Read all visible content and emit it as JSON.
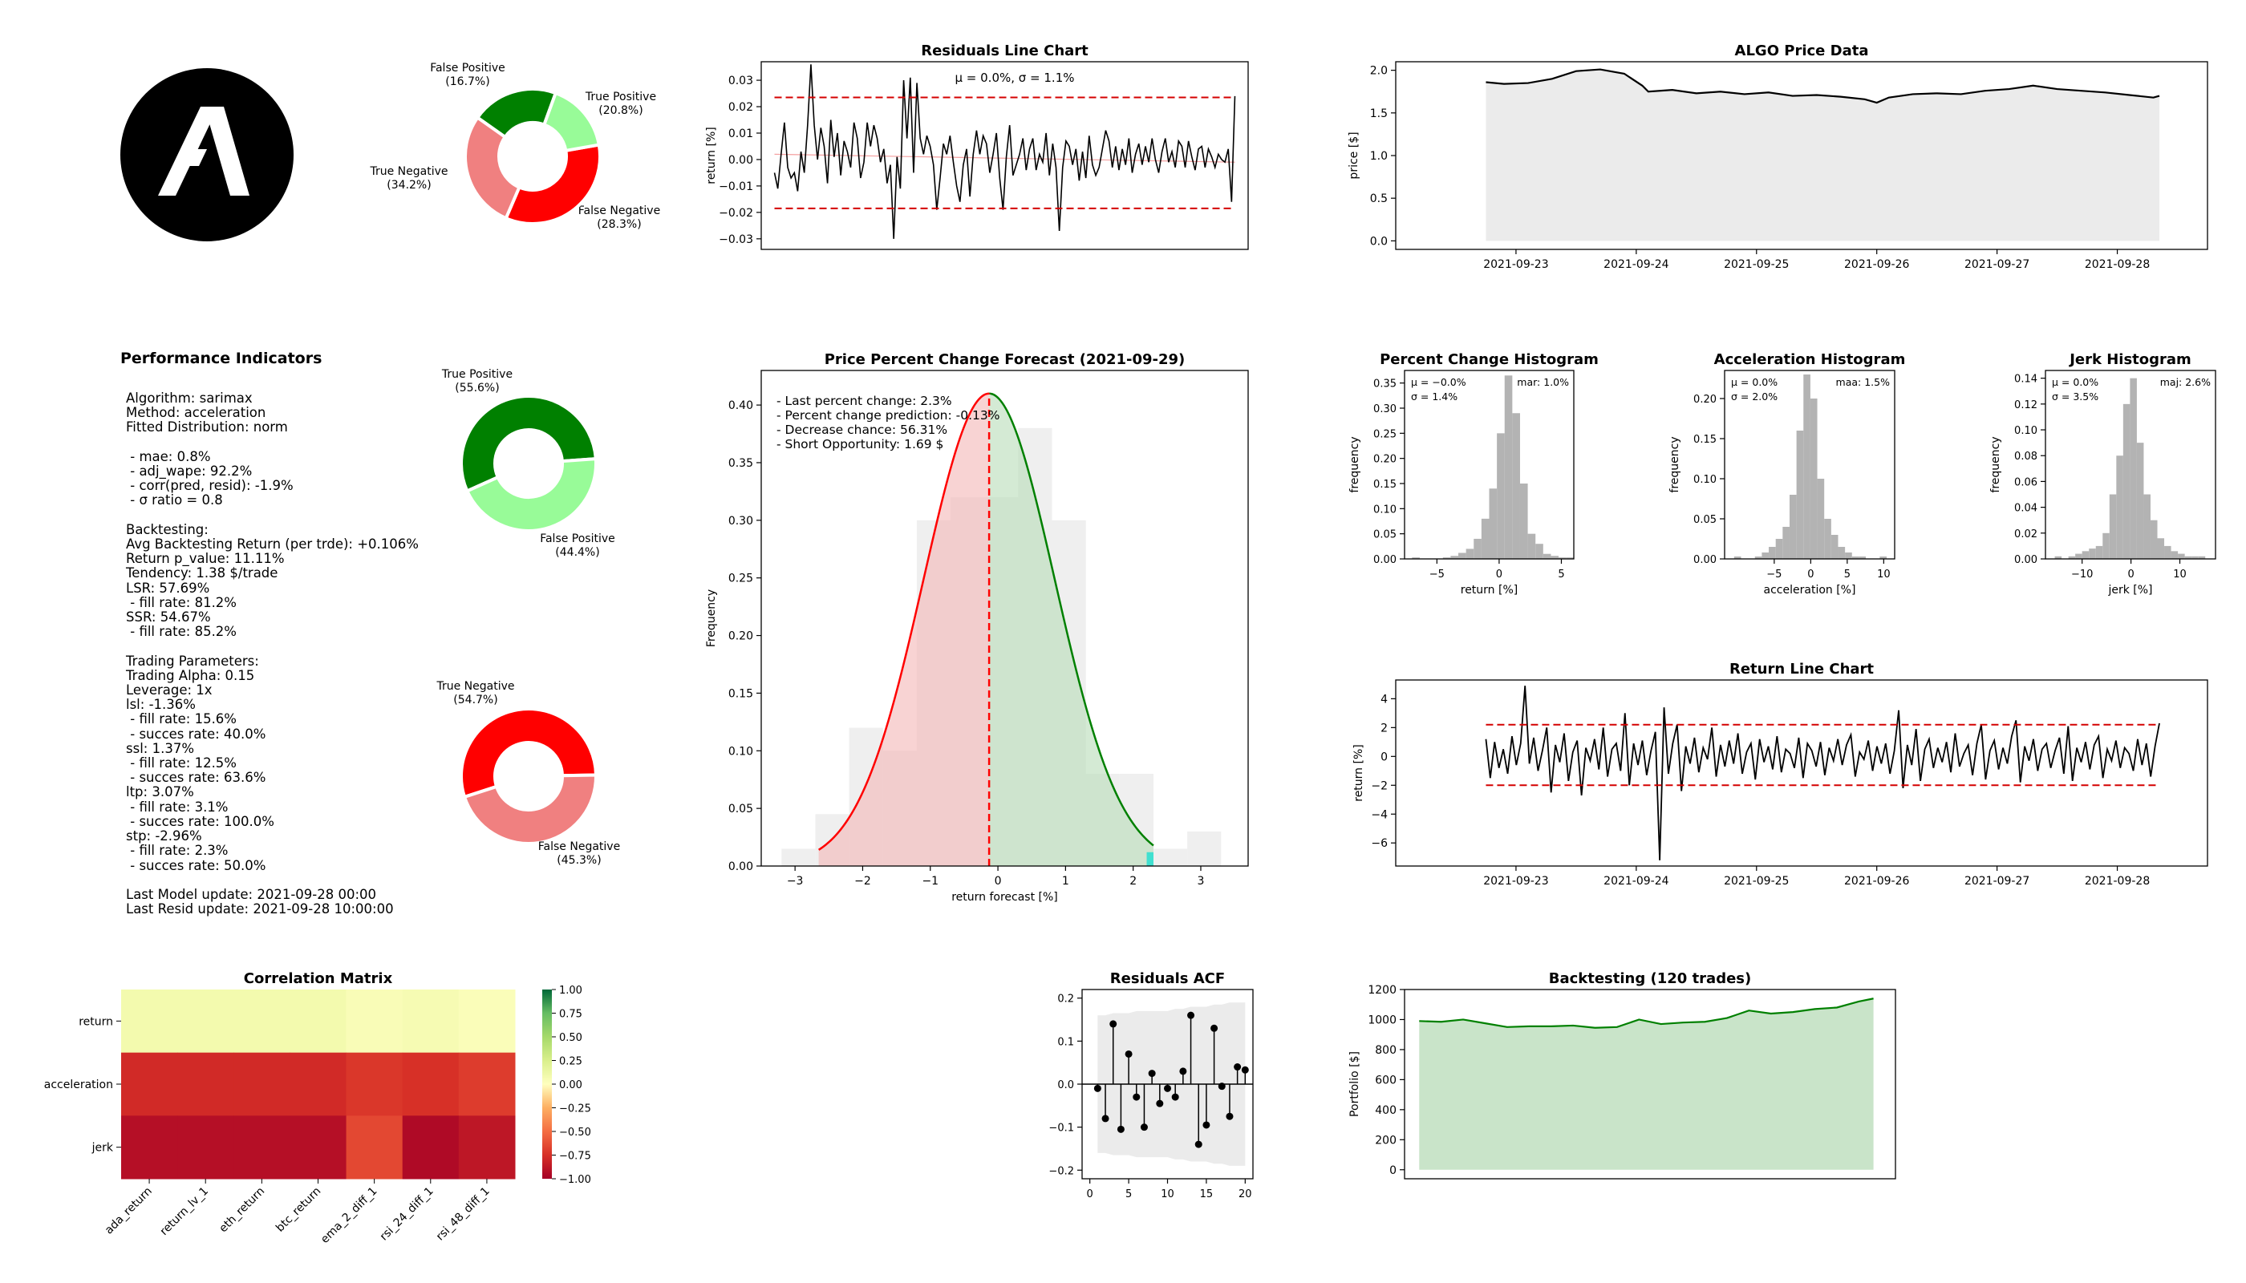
{
  "pie_top": {
    "slices": [
      {
        "label": "True Positive",
        "pct": "(20.8%)",
        "value": 20.8,
        "color": "#008000"
      },
      {
        "label": "False Negative",
        "pct": "(28.3%)",
        "value": 28.3,
        "color": "#f08080"
      },
      {
        "label": "True Negative",
        "pct": "(34.2%)",
        "value": 34.2,
        "color": "#ff0000"
      },
      {
        "label": "False Positive",
        "pct": "(16.7%)",
        "value": 16.7,
        "color": "#98fb98"
      }
    ]
  },
  "pie_mid": {
    "slices": [
      {
        "label": "True Positive",
        "pct": "(55.6%)",
        "value": 55.6,
        "color": "#008000"
      },
      {
        "label": "False Positive",
        "pct": "(44.4%)",
        "value": 44.4,
        "color": "#98fb98"
      }
    ]
  },
  "pie_bot": {
    "slices": [
      {
        "label": "True Negative",
        "pct": "(54.7%)",
        "value": 54.7,
        "color": "#ff0000"
      },
      {
        "label": "False Negative",
        "pct": "(45.3%)",
        "value": 45.3,
        "color": "#f08080"
      }
    ]
  },
  "perf": {
    "title": "Performance Indicators",
    "lines": [
      "Algorithm: sarimax",
      "Method: acceleration",
      "Fitted Distribution: norm",
      "",
      " - mae: 0.8%",
      " - adj_wape: 92.2%",
      " - corr(pred, resid): -1.9%",
      " - σ ratio = 0.8",
      "",
      "Backtesting:",
      "Avg Backtesting Return (per trde): +0.106%",
      "Return p_value: 11.11%",
      "Tendency: 1.38 $/trade",
      "LSR: 57.69%",
      " - fill rate: 81.2%",
      "SSR: 54.67%",
      " - fill rate: 85.2%",
      "",
      "Trading Parameters:",
      "Trading Alpha: 0.15",
      "Leverage: 1x",
      "lsl: -1.36%",
      " - fill rate: 15.6%",
      " - succes rate: 40.0%",
      "ssl: 1.37%",
      " - fill rate: 12.5%",
      " - succes rate: 63.6%",
      "ltp: 3.07%",
      " - fill rate: 3.1%",
      " - succes rate: 100.0%",
      "stp: -2.96%",
      " - fill rate: 2.3%",
      " - succes rate: 50.0%",
      "",
      "Last Model update: 2021-09-28 00:00",
      "Last Resid update: 2021-09-28 10:00:00"
    ]
  },
  "chart_data": [
    {
      "id": "residuals_line",
      "type": "line",
      "title": "Residuals Line Chart",
      "ylabel": "return [%]",
      "annotation": "μ = 0.0%,  σ = 1.1%",
      "ylim": [
        -0.034,
        0.037
      ],
      "yticks": [
        "0.03",
        "0.02",
        "0.01",
        "0.00",
        "−0.01",
        "−0.02",
        "−0.03"
      ],
      "ytick_values": [
        0.03,
        0.02,
        0.01,
        0.0,
        -0.01,
        -0.02,
        -0.03
      ],
      "upper_band": 0.0235,
      "lower_band": -0.0185,
      "values": [
        -0.005,
        -0.011,
        0.002,
        0.014,
        -0.003,
        -0.007,
        -0.005,
        -0.012,
        0.003,
        -0.005,
        0.013,
        0.036,
        0.013,
        0.0,
        0.012,
        0.005,
        -0.009,
        0.015,
        0.001,
        0.01,
        -0.006,
        0.007,
        0.003,
        -0.003,
        0.014,
        0.008,
        -0.007,
        -0.001,
        0.014,
        0.005,
        0.013,
        0.008,
        -0.001,
        0.004,
        -0.009,
        -0.002,
        -0.03,
        0.001,
        -0.011,
        0.03,
        0.008,
        0.031,
        -0.005,
        0.029,
        0.008,
        0.002,
        0.009,
        0.005,
        -0.002,
        -0.019,
        -0.007,
        0.006,
        0.002,
        0.009,
        -0.001,
        -0.01,
        -0.016,
        -0.002,
        0.004,
        -0.014,
        0.002,
        0.011,
        0.002,
        0.009,
        0.006,
        -0.005,
        0.002,
        0.01,
        -0.007,
        -0.019,
        0.001,
        0.013,
        -0.006,
        -0.002,
        0.002,
        0.008,
        -0.004,
        0.004,
        0.008,
        -0.004,
        0.002,
        -0.001,
        0.01,
        -0.006,
        0.006,
        -0.003,
        -0.027,
        -0.003,
        0.007,
        0.005,
        -0.002,
        0.004,
        -0.008,
        0.003,
        -0.007,
        0.009,
        -0.002,
        -0.006,
        -0.003,
        0.004,
        0.011,
        0.007,
        -0.003,
        0.005,
        -0.004,
        0.004,
        -0.002,
        0.008,
        -0.005,
        0.002,
        0.006,
        -0.002,
        0.005,
        -0.001,
        0.008,
        0.0,
        -0.005,
        0.003,
        0.008,
        -0.001,
        0.003,
        -0.003,
        0.007,
        0.005,
        -0.003,
        0.007,
        0.001,
        -0.004,
        0.004,
        0.005,
        -0.003,
        0.004,
        0.001,
        -0.003,
        0.002,
        0.0,
        -0.001,
        0.004,
        -0.016,
        0.024
      ]
    },
    {
      "id": "price",
      "type": "area",
      "title": "ALGO Price Data",
      "ylabel": "price [$]",
      "xlim": [
        0,
        6.75
      ],
      "ylim": [
        -0.1,
        2.1
      ],
      "yticks": [
        "0.0",
        "0.5",
        "1.0",
        "1.5",
        "2.0"
      ],
      "ytick_values": [
        0.0,
        0.5,
        1.0,
        1.5,
        2.0
      ],
      "xticks": [
        "2021-09-23",
        "2021-09-24",
        "2021-09-25",
        "2021-09-26",
        "2021-09-27",
        "2021-09-28"
      ],
      "xtick_values": [
        1,
        2,
        3,
        4,
        5,
        6
      ],
      "x": [
        0.75,
        0.9,
        1.1,
        1.3,
        1.5,
        1.7,
        1.9,
        2.05,
        2.1,
        2.3,
        2.5,
        2.7,
        2.9,
        3.1,
        3.3,
        3.5,
        3.7,
        3.9,
        4.0,
        4.1,
        4.3,
        4.5,
        4.7,
        4.9,
        5.1,
        5.3,
        5.5,
        5.7,
        5.9,
        6.1,
        6.3,
        6.35
      ],
      "values": [
        1.86,
        1.84,
        1.85,
        1.9,
        1.99,
        2.01,
        1.96,
        1.82,
        1.75,
        1.77,
        1.73,
        1.75,
        1.72,
        1.74,
        1.7,
        1.71,
        1.69,
        1.66,
        1.62,
        1.68,
        1.72,
        1.73,
        1.72,
        1.76,
        1.78,
        1.82,
        1.78,
        1.76,
        1.74,
        1.71,
        1.68,
        1.7
      ]
    },
    {
      "id": "forecast",
      "type": "area",
      "title": "Price Percent Change Forecast (2021-09-29)",
      "xlabel": "return  forecast [%]",
      "ylabel": "Frequency",
      "xlim": [
        -3.5,
        3.7
      ],
      "ylim": [
        0,
        0.43
      ],
      "xticks": [
        "−3",
        "−2",
        "−1",
        "0",
        "1",
        "2",
        "3"
      ],
      "xtick_values": [
        -3,
        -2,
        -1,
        0,
        1,
        2,
        3
      ],
      "yticks": [
        "0.00",
        "0.05",
        "0.10",
        "0.15",
        "0.20",
        "0.25",
        "0.30",
        "0.35",
        "0.40"
      ],
      "ytick_values": [
        0.0,
        0.05,
        0.1,
        0.15,
        0.2,
        0.25,
        0.3,
        0.35,
        0.4
      ],
      "normal_mean": -0.13,
      "normal_peak": 0.41,
      "normal_sigma": 0.97,
      "curve_range": [
        -2.65,
        2.3
      ],
      "hist_bins": [
        -3.2,
        -2.7,
        -2.2,
        -1.7,
        -1.2,
        -0.7,
        -0.2,
        0.3,
        0.8,
        1.3,
        1.8,
        2.3,
        2.8,
        3.3
      ],
      "hist_values": [
        0.015,
        0.045,
        0.12,
        0.1,
        0.3,
        0.32,
        0.32,
        0.38,
        0.3,
        0.08,
        0.08,
        0.015,
        0.03
      ],
      "annotations": [
        "- Last percent change: 2.3%",
        "- Percent change prediction: -0.13%",
        "- Decrease chance: 56.31%",
        "- Short Opportunity: 1.69 $"
      ]
    },
    {
      "id": "hist_return",
      "type": "bar",
      "title": "Percent Change Histogram",
      "xlabel": "return [%]",
      "ylabel": "frequency",
      "xlim": [
        -7.6,
        6.0
      ],
      "ylim": [
        0,
        0.375
      ],
      "xticks": [
        "−5",
        "0",
        "5"
      ],
      "xtick_values": [
        -5,
        0,
        5
      ],
      "yticks": [
        "0.00",
        "0.05",
        "0.10",
        "0.15",
        "0.20",
        "0.25",
        "0.30",
        "0.35"
      ],
      "ytick_values": [
        0.0,
        0.05,
        0.1,
        0.15,
        0.2,
        0.25,
        0.3,
        0.35
      ],
      "stats_left": [
        "μ = −0.0%",
        "σ = 1.4%"
      ],
      "stats_right": "mar: 1.0%",
      "bin_width": 0.62,
      "bin_start": -7.0,
      "values": [
        0.003,
        0.0,
        0.0,
        0.0,
        0.003,
        0.006,
        0.012,
        0.02,
        0.04,
        0.08,
        0.14,
        0.25,
        0.365,
        0.29,
        0.15,
        0.05,
        0.03,
        0.01,
        0.006,
        0.003,
        0.003
      ]
    },
    {
      "id": "hist_accel",
      "type": "bar",
      "title": "Acceleration Histogram",
      "xlabel": "acceleration [%]",
      "ylabel": "frequency",
      "xlim": [
        -11.8,
        11.5
      ],
      "ylim": [
        0,
        0.235
      ],
      "xticks": [
        "−5",
        "0",
        "5",
        "10"
      ],
      "xtick_values": [
        -5,
        0,
        5,
        10
      ],
      "yticks": [
        "0.00",
        "0.05",
        "0.10",
        "0.15",
        "0.20"
      ],
      "ytick_values": [
        0.0,
        0.05,
        0.1,
        0.15,
        0.2
      ],
      "stats_left": [
        "μ = 0.0%",
        "σ = 2.0%"
      ],
      "stats_right": "maa: 1.5%",
      "bin_width": 0.95,
      "bin_start": -10.5,
      "values": [
        0.003,
        0.0,
        0.0,
        0.003,
        0.008,
        0.015,
        0.025,
        0.04,
        0.08,
        0.16,
        0.23,
        0.2,
        0.1,
        0.05,
        0.03,
        0.015,
        0.008,
        0.003,
        0.003,
        0.0,
        0.0,
        0.003
      ]
    },
    {
      "id": "hist_jerk",
      "type": "bar",
      "title": "Jerk Histogram",
      "xlabel": "jerk [%]",
      "ylabel": "frequency",
      "xlim": [
        -17.5,
        17.3
      ],
      "ylim": [
        0,
        0.146
      ],
      "xticks": [
        "−10",
        "0",
        "10"
      ],
      "xtick_values": [
        -10,
        0,
        10
      ],
      "yticks": [
        "0.00",
        "0.02",
        "0.04",
        "0.06",
        "0.08",
        "0.10",
        "0.12",
        "0.14"
      ],
      "ytick_values": [
        0.0,
        0.02,
        0.04,
        0.06,
        0.08,
        0.1,
        0.12,
        0.14
      ],
      "stats_left": [
        "μ = 0.0%",
        "σ = 3.5%"
      ],
      "stats_right": "maj: 2.6%",
      "bin_width": 1.4,
      "bin_start": -15.6,
      "values": [
        0.002,
        0.0,
        0.002,
        0.004,
        0.006,
        0.008,
        0.01,
        0.02,
        0.05,
        0.08,
        0.12,
        0.14,
        0.09,
        0.05,
        0.03,
        0.016,
        0.01,
        0.006,
        0.004,
        0.002,
        0.002,
        0.002
      ]
    },
    {
      "id": "return_line",
      "type": "line",
      "title": "Return Line Chart",
      "ylabel": "return [%]",
      "xlim": [
        0,
        6.75
      ],
      "ylim": [
        -7.6,
        5.3
      ],
      "yticks": [
        "4",
        "2",
        "0",
        "−2",
        "−4",
        "−6"
      ],
      "ytick_values": [
        4,
        2,
        0,
        -2,
        -4,
        -6
      ],
      "xticks": [
        "2021-09-23",
        "2021-09-24",
        "2021-09-25",
        "2021-09-26",
        "2021-09-27",
        "2021-09-28"
      ],
      "xtick_values": [
        1,
        2,
        3,
        4,
        5,
        6
      ],
      "upper_band": 2.2,
      "lower_band": -2.0,
      "x_start": 0.75,
      "x_end": 6.35,
      "values": [
        1.2,
        -1.5,
        1.0,
        -0.8,
        0.5,
        -1.2,
        1.4,
        -0.6,
        0.9,
        4.9,
        -0.5,
        1.3,
        -1.0,
        0.4,
        2.0,
        -2.5,
        0.8,
        -0.4,
        1.6,
        -1.7,
        0.3,
        1.1,
        -2.7,
        0.6,
        -0.3,
        1.2,
        -0.9,
        2.0,
        -1.4,
        0.5,
        0.9,
        -1.0,
        3.0,
        -2.0,
        0.9,
        -0.6,
        1.1,
        -1.3,
        0.4,
        1.7,
        -7.2,
        3.4,
        -1.2,
        0.9,
        2.2,
        -2.4,
        0.7,
        -0.5,
        1.3,
        -1.1,
        0.6,
        -0.2,
        2.0,
        -1.4,
        0.8,
        -0.7,
        1.1,
        -0.5,
        1.6,
        -1.2,
        0.3,
        0.9,
        -1.6,
        1.2,
        -0.4,
        0.7,
        -0.9,
        1.4,
        -1.1,
        0.5,
        0.2,
        -0.8,
        1.3,
        -1.5,
        0.9,
        0.4,
        -0.7,
        1.0,
        -1.3,
        0.6,
        -0.3,
        1.2,
        -0.6,
        0.8,
        1.5,
        -1.4,
        0.3,
        -0.2,
        1.1,
        -1.0,
        0.7,
        -0.5,
        0.9,
        -1.2,
        0.4,
        3.2,
        -2.2,
        0.8,
        -0.6,
        1.9,
        -1.7,
        0.5,
        1.2,
        -0.8,
        0.6,
        -0.4,
        1.0,
        -1.1,
        1.6,
        -0.7,
        0.2,
        0.8,
        -1.3,
        0.9,
        2.2,
        -1.6,
        0.4,
        1.1,
        -0.9,
        0.6,
        -0.5,
        1.4,
        2.5,
        -1.8,
        0.7,
        -0.3,
        1.2,
        -1.0,
        0.5,
        0.9,
        -0.8,
        0.4,
        1.3,
        -1.2,
        2.1,
        -1.7,
        0.6,
        -0.4,
        1.0,
        -0.9,
        0.8,
        1.4,
        -1.5,
        0.5,
        -0.3,
        1.1,
        -0.8,
        0.6,
        0.2,
        -1.0,
        1.2,
        -0.6,
        0.9,
        -1.4,
        0.7,
        2.3
      ]
    },
    {
      "id": "corr",
      "type": "heatmap",
      "title": "Correlation Matrix",
      "rows": [
        "return",
        "acceleration",
        "jerk"
      ],
      "cols": [
        "ada_return",
        "return_lv_1",
        "eth_return",
        "btc_return",
        "ema_2_diff_1",
        "rsi_24_diff_1",
        "rsi_48_diff_1"
      ],
      "values": [
        [
          0.08,
          0.08,
          0.08,
          0.08,
          0.04,
          0.06,
          0.03
        ],
        [
          -0.78,
          -0.78,
          -0.78,
          -0.78,
          -0.72,
          -0.75,
          -0.7
        ],
        [
          -0.92,
          -0.92,
          -0.92,
          -0.92,
          -0.65,
          -0.95,
          -0.88
        ]
      ],
      "colorbar_ticks": [
        "1.00",
        "0.75",
        "0.50",
        "0.25",
        "0.00",
        "−0.25",
        "−0.50",
        "−0.75",
        "−1.00"
      ],
      "colorbar_values": [
        1.0,
        0.75,
        0.5,
        0.25,
        0.0,
        -0.25,
        -0.5,
        -0.75,
        -1.0
      ],
      "vmin": -1,
      "vmax": 1
    },
    {
      "id": "acf",
      "type": "scatter",
      "title": "Residuals ACF",
      "xlim": [
        -1,
        21
      ],
      "ylim": [
        -0.22,
        0.22
      ],
      "xticks": [
        "0",
        "5",
        "10",
        "15",
        "20"
      ],
      "xtick_values": [
        0,
        5,
        10,
        15,
        20
      ],
      "yticks": [
        "0.2",
        "0.1",
        "0.0",
        "−0.1",
        "−0.2"
      ],
      "ytick_values": [
        0.2,
        0.1,
        0.0,
        -0.1,
        -0.2
      ],
      "band": [
        0.16,
        0.16,
        0.165,
        0.165,
        0.165,
        0.17,
        0.17,
        0.17,
        0.17,
        0.17,
        0.175,
        0.175,
        0.18,
        0.18,
        0.18,
        0.185,
        0.185,
        0.19,
        0.19,
        0.19
      ],
      "lags": [
        1,
        2,
        3,
        4,
        5,
        6,
        7,
        8,
        9,
        10,
        11,
        12,
        13,
        14,
        15,
        16,
        17,
        18,
        19,
        20
      ],
      "values": [
        -0.01,
        -0.08,
        0.14,
        -0.105,
        0.07,
        -0.03,
        -0.1,
        0.025,
        -0.045,
        -0.01,
        -0.03,
        0.03,
        0.16,
        -0.14,
        -0.095,
        0.13,
        -0.005,
        -0.075,
        0.04,
        0.033
      ]
    },
    {
      "id": "backtest",
      "type": "area",
      "title": "Backtesting (120 trades)",
      "ylabel": "Portfolio [$]",
      "xlim": [
        -4,
        130
      ],
      "ylim": [
        -60,
        1200
      ],
      "yticks": [
        "1200",
        "1000",
        "800",
        "600",
        "400",
        "200",
        "0"
      ],
      "ytick_values": [
        1200,
        1000,
        800,
        600,
        400,
        200,
        0
      ],
      "x": [
        0,
        6,
        12,
        18,
        24,
        30,
        36,
        42,
        48,
        54,
        60,
        66,
        72,
        78,
        84,
        90,
        96,
        102,
        108,
        114,
        120,
        124
      ],
      "values": [
        990,
        985,
        1000,
        975,
        950,
        955,
        955,
        960,
        945,
        950,
        1000,
        970,
        980,
        985,
        1010,
        1060,
        1040,
        1050,
        1070,
        1080,
        1120,
        1140
      ]
    }
  ]
}
